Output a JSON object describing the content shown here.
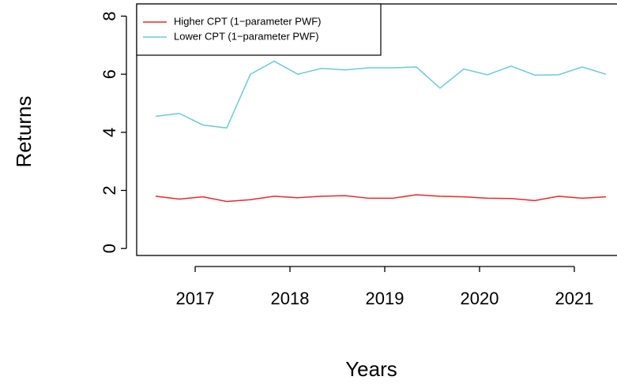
{
  "chart_data": {
    "type": "line",
    "xlabel": "Years",
    "ylabel": "Returns",
    "x": [
      2016.583,
      2016.833,
      2017.083,
      2017.333,
      2017.583,
      2017.833,
      2018.083,
      2018.333,
      2018.583,
      2018.833,
      2019.083,
      2019.333,
      2019.583,
      2019.833,
      2020.083,
      2020.333,
      2020.583,
      2020.833,
      2021.083,
      2021.333
    ],
    "series": [
      {
        "name": "Higher CPT (1−parameter PWF)",
        "color": "#e8282b",
        "values": [
          1.8,
          1.7,
          1.78,
          1.62,
          1.68,
          1.8,
          1.75,
          1.8,
          1.82,
          1.73,
          1.73,
          1.85,
          1.8,
          1.78,
          1.73,
          1.72,
          1.65,
          1.8,
          1.73,
          1.78
        ]
      },
      {
        "name": "Lower CPT (1−parameter PWF)",
        "color": "#6ccad6",
        "values": [
          4.55,
          4.65,
          4.25,
          4.15,
          6.0,
          6.45,
          6.0,
          6.2,
          6.15,
          6.22,
          6.22,
          6.25,
          5.52,
          6.18,
          5.98,
          6.28,
          5.97,
          5.98,
          6.25,
          6.0
        ]
      }
    ],
    "xlim": [
      2016.383,
      2021.45
    ],
    "xticks": [
      2017,
      2018,
      2019,
      2020,
      2021
    ],
    "ylim": [
      -0.24,
      8.42
    ],
    "yticks": [
      0,
      2,
      4,
      6,
      8
    ],
    "legend": "top-left"
  }
}
